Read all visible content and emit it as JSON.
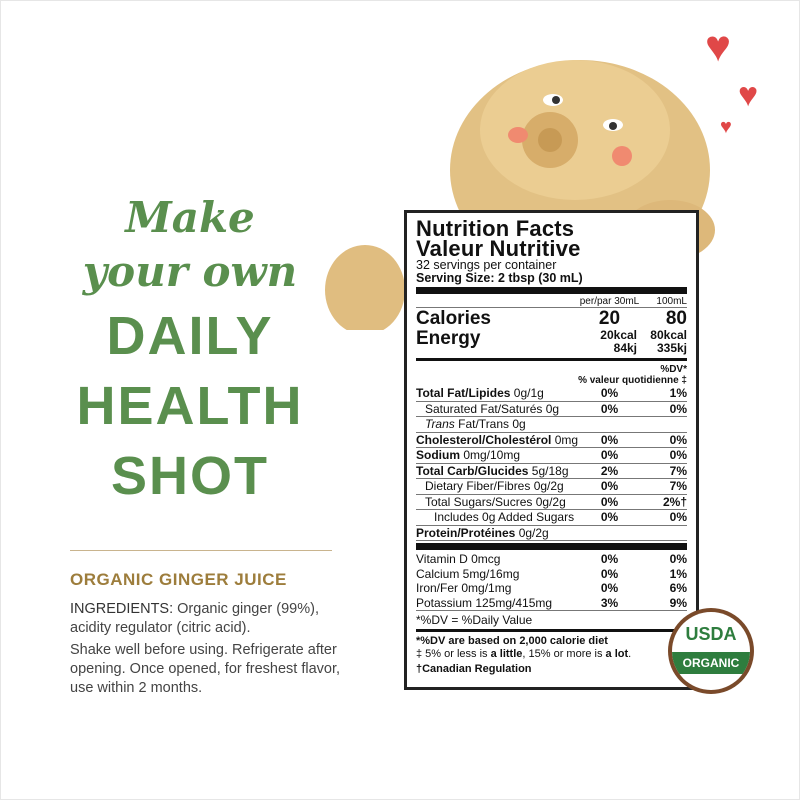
{
  "headline": {
    "line1": "Make",
    "line2": "your own",
    "line3": "DAILY",
    "line4": "HEALTH",
    "line5": "SHOT"
  },
  "product": {
    "name": "ORGANIC GINGER JUICE",
    "ingredients_label": "INGREDIENTS:",
    "ingredients": " Organic ginger (99%), acidity regulator (citric acid).",
    "instructions": "Shake well before using. Refrigerate after opening. Once opened, for freshest flavor, use within 2 months."
  },
  "label": {
    "title1": "Nutrition Facts",
    "title2": "Valeur Nutritive",
    "servings": "32 servings per container",
    "serving_size": "Serving Size: 2 tbsp (30 mL)",
    "col1": "per/par 30mL",
    "col2": "100mL",
    "calories_label": "Calories",
    "calories": [
      "20",
      "80"
    ],
    "energy_label": "Energy",
    "energy_kcal": [
      "20kcal",
      "80kcal"
    ],
    "energy_kj": [
      "84kj",
      "335kj"
    ],
    "dv1": "%DV*",
    "dv2": "% valeur quotidienne ‡",
    "rows": [
      {
        "bold": "Total Fat/Lipides",
        "text": " 0g/1g",
        "a": "0%",
        "b": "1%",
        "indent": 0
      },
      {
        "bold": "",
        "text": "Saturated Fat/Saturés 0g",
        "a": "0%",
        "b": "0%",
        "indent": 1
      },
      {
        "bold": "",
        "italic": "Trans",
        "text": " Fat/Trans 0g",
        "a": "",
        "b": "",
        "indent": 1
      },
      {
        "bold": "Cholesterol/Cholestérol",
        "text": " 0mg",
        "a": "0%",
        "b": "0%",
        "indent": 0
      },
      {
        "bold": "Sodium",
        "text": " 0mg/10mg",
        "a": "0%",
        "b": "0%",
        "indent": 0
      },
      {
        "bold": "Total Carb/Glucides",
        "text": " 5g/18g",
        "a": "2%",
        "b": "7%",
        "indent": 0
      },
      {
        "bold": "",
        "text": "Dietary Fiber/Fibres 0g/2g",
        "a": "0%",
        "b": "7%",
        "indent": 1
      },
      {
        "bold": "",
        "text": "Total Sugars/Sucres 0g/2g",
        "a": "0%",
        "b": "2%†",
        "indent": 1
      },
      {
        "bold": "",
        "text": "Includes 0g Added Sugars",
        "a": "0%",
        "b": "0%",
        "indent": 2
      },
      {
        "bold": "Protein/Protéines",
        "text": " 0g/2g",
        "a": "",
        "b": "",
        "indent": 0
      }
    ],
    "vitamins": [
      {
        "text": "Vitamin D 0mcg",
        "a": "0%",
        "b": "0%"
      },
      {
        "text": "Calcium 5mg/16mg",
        "a": "0%",
        "b": "1%"
      },
      {
        "text": "Iron/Fer 0mg/1mg",
        "a": "0%",
        "b": "6%"
      },
      {
        "text": "Potassium 125mg/415mg",
        "a": "3%",
        "b": "9%"
      }
    ],
    "dv_note": "*%DV = %Daily Value",
    "foot1": "*%DV are based on 2,000 calorie diet",
    "foot2_pre": "‡ 5% or less is ",
    "foot2_b1": "a little",
    "foot2_mid": ", 15% or more is ",
    "foot2_b2": "a lot",
    "foot2_end": ".",
    "foot3": "†Canadian Regulation"
  },
  "seal": {
    "top": "USDA",
    "bottom": "ORGANIC"
  },
  "colors": {
    "green": "#5a8f4e",
    "tan": "#9d7d3c",
    "heart": "#e04848"
  }
}
